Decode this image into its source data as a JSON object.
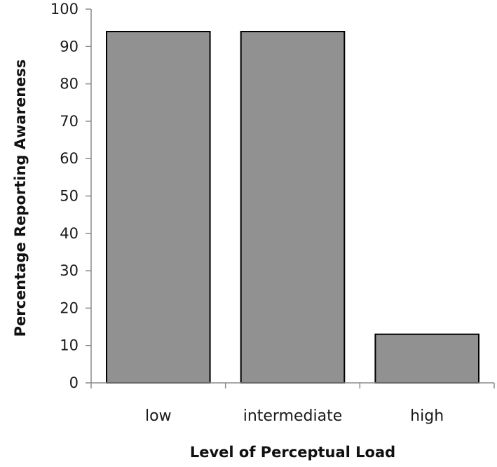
{
  "chart_data": {
    "type": "bar",
    "title": "",
    "xlabel": "Level of Perceptual Load",
    "ylabel": "Percentage Reporting Awareness",
    "categories": [
      "low",
      "intermediate",
      "high"
    ],
    "values": [
      94,
      94,
      13
    ],
    "ylim": [
      0,
      100
    ],
    "yticks": [
      0,
      10,
      20,
      30,
      40,
      50,
      60,
      70,
      80,
      90,
      100
    ],
    "grid": false,
    "legend": "none",
    "colors": {
      "bar_fill": "#919191",
      "bar_stroke": "#000000",
      "axis": "#8a8a8a",
      "text": "#1a1a1a"
    }
  }
}
